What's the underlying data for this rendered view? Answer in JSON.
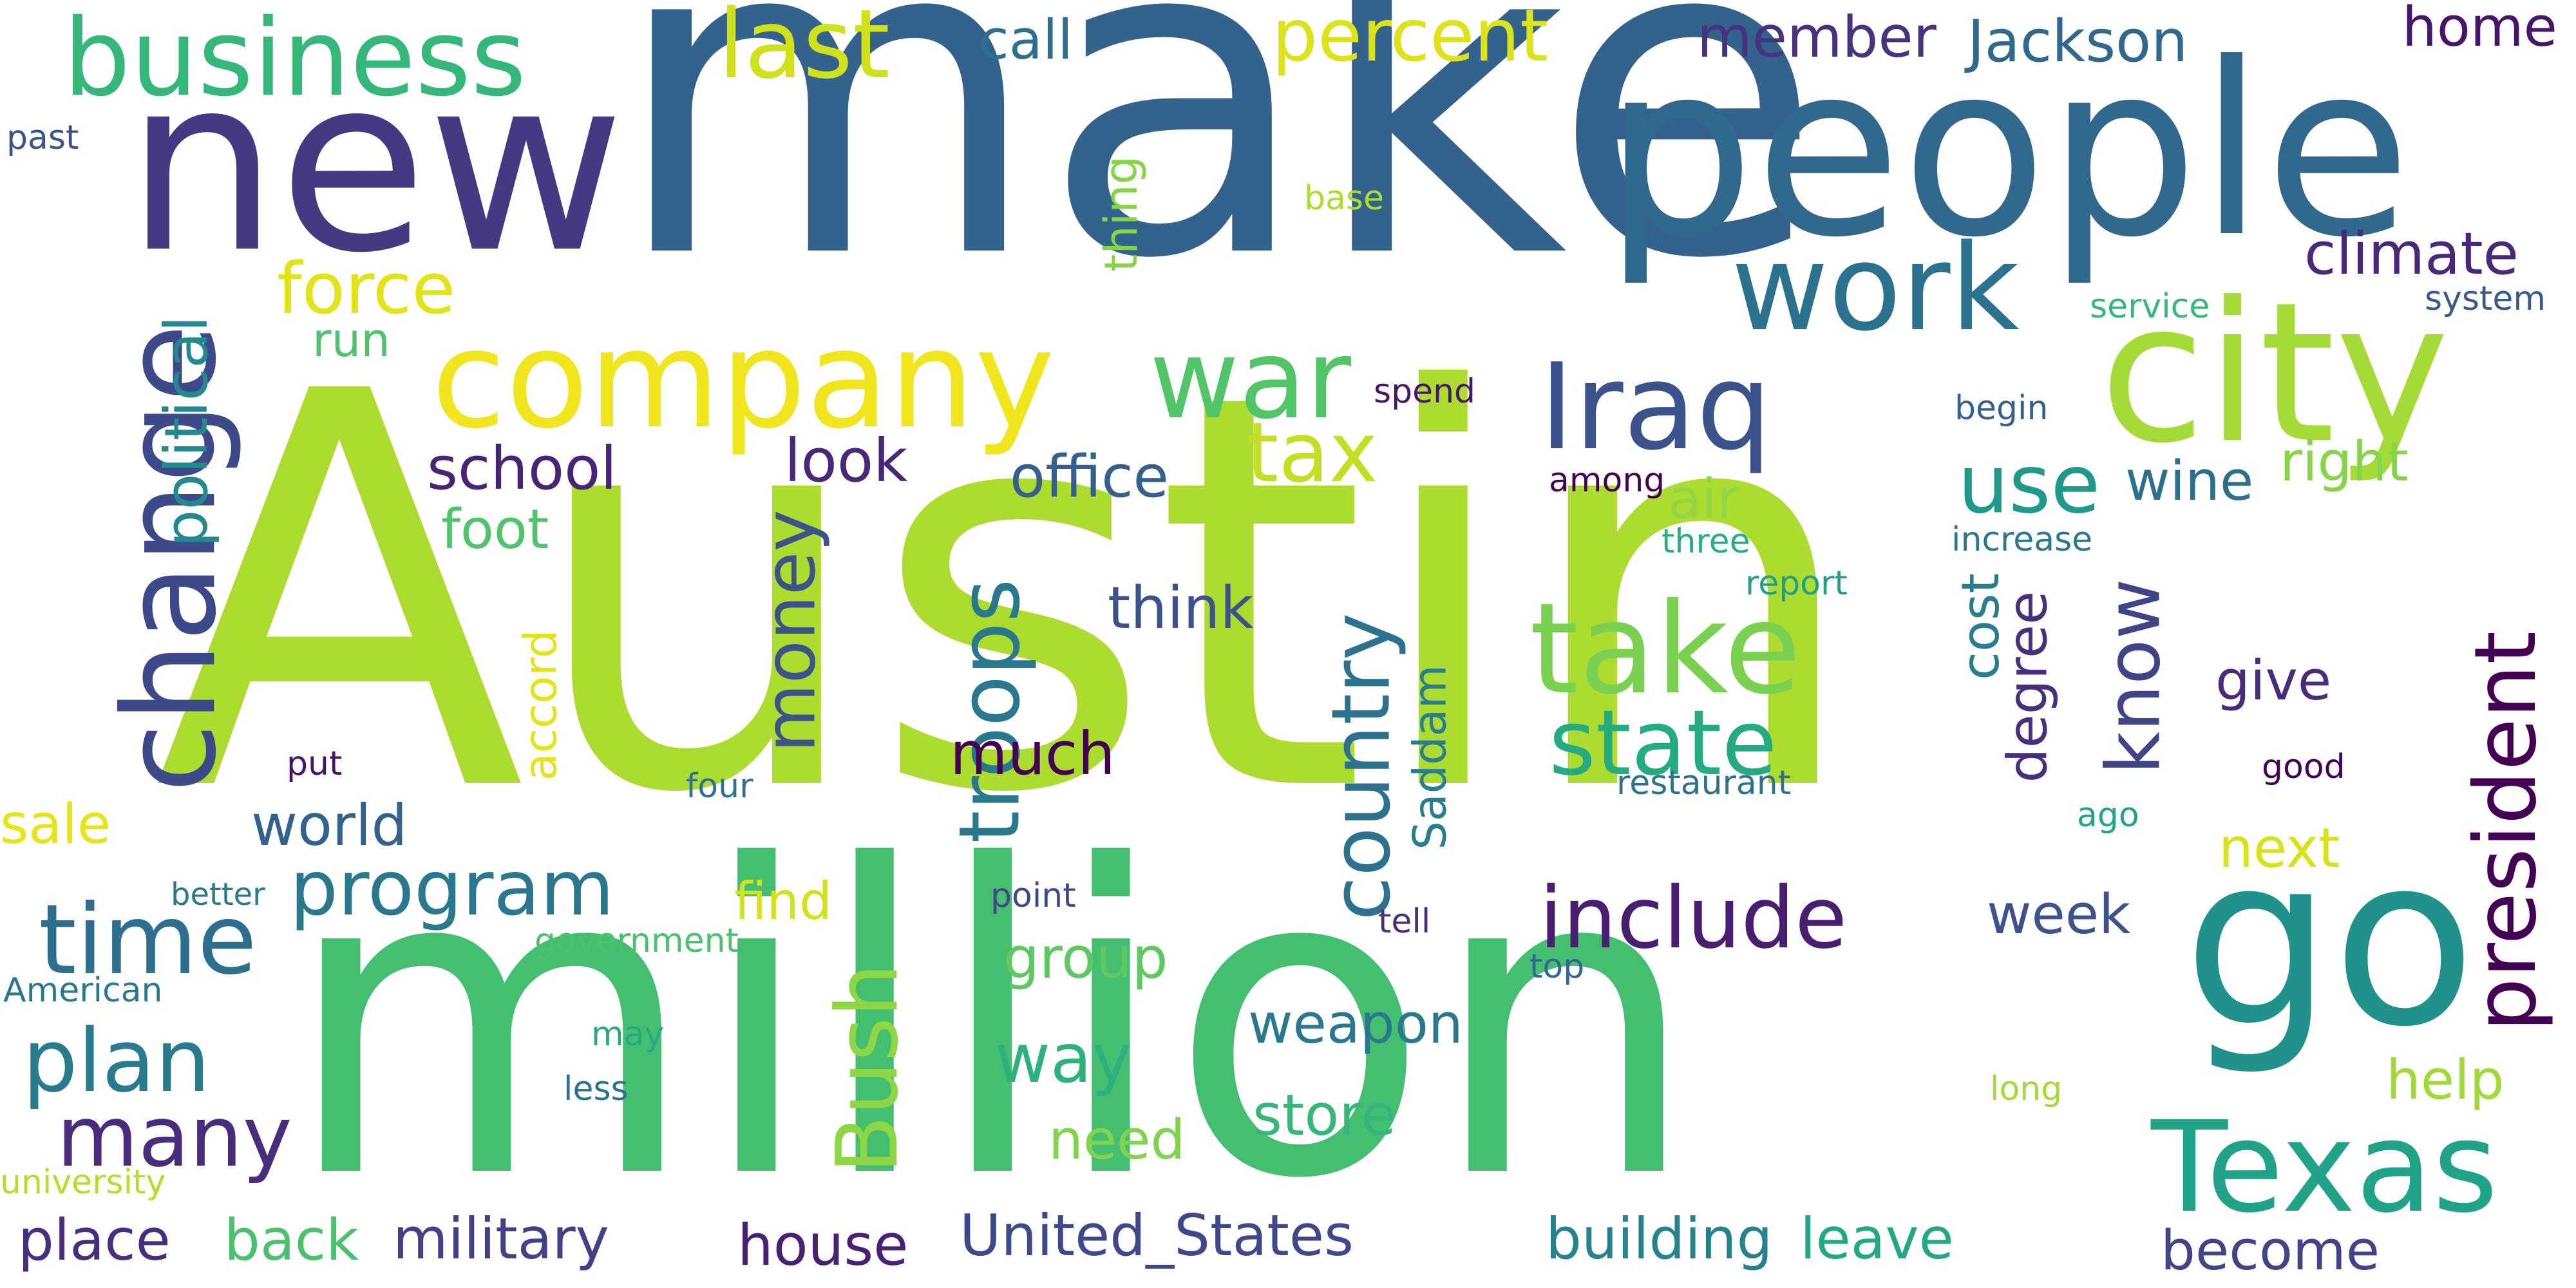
{
  "words": [
    {
      "text": "Austin",
      "color": "#addc30"
    },
    {
      "text": "million",
      "color": "#44bf70"
    },
    {
      "text": "make",
      "color": "#33638d"
    },
    {
      "text": "people",
      "color": "#31688e"
    },
    {
      "text": "new",
      "color": "#443983"
    },
    {
      "text": "go",
      "color": "#21918c"
    },
    {
      "text": "city",
      "color": "#a5db36"
    },
    {
      "text": "company",
      "color": "#f1e51d"
    },
    {
      "text": "Texas",
      "color": "#20a386"
    },
    {
      "text": "change",
      "color": "#3e4989"
    },
    {
      "text": "business",
      "color": "#35b779"
    },
    {
      "text": "work",
      "color": "#2c728e"
    },
    {
      "text": "war",
      "color": "#52c569"
    },
    {
      "text": "Iraq",
      "color": "#3b528b"
    },
    {
      "text": "take",
      "color": "#7ad151"
    },
    {
      "text": "state",
      "color": "#25ab82"
    },
    {
      "text": "president",
      "color": "#440154"
    },
    {
      "text": "include",
      "color": "#481f70"
    },
    {
      "text": "last",
      "color": "#d0e11c"
    },
    {
      "text": "percent",
      "color": "#dde318"
    },
    {
      "text": "time",
      "color": "#2e6e8e"
    },
    {
      "text": "plan",
      "color": "#297b8e"
    },
    {
      "text": "many",
      "color": "#472d7b"
    },
    {
      "text": "program",
      "color": "#2a788e"
    },
    {
      "text": "Bush",
      "color": "#8ed645"
    },
    {
      "text": "troops",
      "color": "#2a788e"
    },
    {
      "text": "country",
      "color": "#2c728e"
    },
    {
      "text": "money",
      "color": "#3b528b"
    },
    {
      "text": "use",
      "color": "#1f9a8a"
    },
    {
      "text": "tax",
      "color": "#c2df23"
    },
    {
      "text": "force",
      "color": "#e2e418"
    },
    {
      "text": "member",
      "color": "#46327e"
    },
    {
      "text": "Jackson",
      "color": "#31688e"
    },
    {
      "text": "call",
      "color": "#2e6e8e"
    },
    {
      "text": "home",
      "color": "#481668"
    },
    {
      "text": "climate",
      "color": "#482878"
    },
    {
      "text": "know",
      "color": "#404588"
    },
    {
      "text": "political",
      "color": "#23898e"
    },
    {
      "text": "school",
      "color": "#482475"
    },
    {
      "text": "look",
      "color": "#482878"
    },
    {
      "text": "office",
      "color": "#355f8d"
    },
    {
      "text": "world",
      "color": "#33638d"
    },
    {
      "text": "much",
      "color": "#440154"
    },
    {
      "text": "think",
      "color": "#3b528b"
    },
    {
      "text": "foot",
      "color": "#50c46a"
    },
    {
      "text": "air",
      "color": "#90d743"
    },
    {
      "text": "right",
      "color": "#86d549"
    },
    {
      "text": "wine",
      "color": "#2d708e"
    },
    {
      "text": "give",
      "color": "#472c7a"
    },
    {
      "text": "degree",
      "color": "#46307e"
    },
    {
      "text": "cost",
      "color": "#287d8e"
    },
    {
      "text": "next",
      "color": "#d8e219"
    },
    {
      "text": "week",
      "color": "#3b528b"
    },
    {
      "text": "group",
      "color": "#5ec962"
    },
    {
      "text": "way",
      "color": "#2db27d"
    },
    {
      "text": "weapon",
      "color": "#2a788e"
    },
    {
      "text": "need",
      "color": "#7fd34e"
    },
    {
      "text": "store",
      "color": "#35b779"
    },
    {
      "text": "help",
      "color": "#a0da39"
    },
    {
      "text": "become",
      "color": "#414487"
    },
    {
      "text": "leave",
      "color": "#22a884"
    },
    {
      "text": "building",
      "color": "#26828e"
    },
    {
      "text": "United_States",
      "color": "#3e4989"
    },
    {
      "text": "house",
      "color": "#482173"
    },
    {
      "text": "military",
      "color": "#424086"
    },
    {
      "text": "back",
      "color": "#4ac16d"
    },
    {
      "text": "place",
      "color": "#46307e"
    },
    {
      "text": "sale",
      "color": "#e7e419"
    },
    {
      "text": "find",
      "color": "#d2e21b"
    },
    {
      "text": "accord",
      "color": "#e5e419"
    },
    {
      "text": "Saddam",
      "color": "#287d8e"
    },
    {
      "text": "run",
      "color": "#4ec36b"
    },
    {
      "text": "thing",
      "color": "#86d549"
    },
    {
      "text": "base",
      "color": "#addc30"
    },
    {
      "text": "spend",
      "color": "#481668"
    },
    {
      "text": "among",
      "color": "#440154"
    },
    {
      "text": "service",
      "color": "#35b779"
    },
    {
      "text": "system",
      "color": "#38598c"
    },
    {
      "text": "begin",
      "color": "#355f8d"
    },
    {
      "text": "three",
      "color": "#26ad81"
    },
    {
      "text": "increase",
      "color": "#2a788e"
    },
    {
      "text": "report",
      "color": "#1f9e89"
    },
    {
      "text": "restaurant",
      "color": "#2c728e"
    },
    {
      "text": "four",
      "color": "#2c728e"
    },
    {
      "text": "put",
      "color": "#471365"
    },
    {
      "text": "good",
      "color": "#440154"
    },
    {
      "text": "ago",
      "color": "#20a386"
    },
    {
      "text": "better",
      "color": "#2a788e"
    },
    {
      "text": "point",
      "color": "#3e4989"
    },
    {
      "text": "tell",
      "color": "#46307e"
    },
    {
      "text": "government",
      "color": "#4ac16d"
    },
    {
      "text": "top",
      "color": "#31688e"
    },
    {
      "text": "American",
      "color": "#2a788e"
    },
    {
      "text": "may",
      "color": "#25ab82"
    },
    {
      "text": "less",
      "color": "#2c728e"
    },
    {
      "text": "long",
      "color": "#a5db36"
    },
    {
      "text": "university",
      "color": "#b5de2b"
    },
    {
      "text": "past",
      "color": "#3b528b"
    }
  ]
}
